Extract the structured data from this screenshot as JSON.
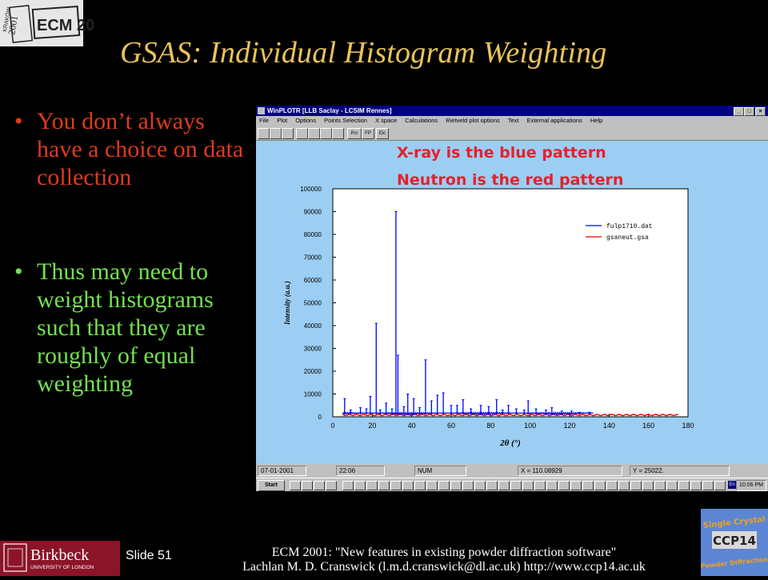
{
  "logo": {
    "text_krakow": "KRAKÓW",
    "year": "2001",
    "brand": "ECM 20"
  },
  "title": "GSAS: Individual Histogram  Weighting",
  "bullets": [
    {
      "text": "You don’t always have a choice on data collection",
      "color": "#e0391e"
    },
    {
      "text": "Thus may need to weight histograms such that they are roughly of equal weighting",
      "color": "#73e04f"
    }
  ],
  "window": {
    "title": "WinPLOTR [LLB Saclay - LCSIM Rennes]",
    "menu": [
      "File",
      "Plot",
      "Options",
      "Points Selection",
      "X space",
      "Calculations",
      "Rietveld plot options",
      "Text",
      "External applications",
      "Help"
    ],
    "toolbar_labels": [
      "Pcr",
      "FP",
      "Eic"
    ],
    "annotation1": "X-ray is the blue pattern",
    "annotation2": "Neutron is the red pattern",
    "status": {
      "date": "07-01-2001",
      "time": "22:06",
      "mode": "NUM",
      "x": "X =    110.08929",
      "y": "Y =    25022."
    },
    "taskbar": {
      "start": "Start",
      "clock": "10:06 PM",
      "lang": "En"
    }
  },
  "chart_data": {
    "type": "line",
    "xlabel": "2θ (°)",
    "ylabel": "Intensity (a.u.)",
    "xlim": [
      0,
      180
    ],
    "ylim": [
      0,
      100000
    ],
    "xticks": [
      0,
      20,
      40,
      60,
      80,
      100,
      120,
      140,
      160,
      180
    ],
    "yticks": [
      0,
      10000,
      20000,
      30000,
      40000,
      50000,
      60000,
      70000,
      80000,
      90000,
      100000
    ],
    "legend_position": "top-right",
    "series": [
      {
        "name": "fulp1710.dat",
        "color": "#0000ff",
        "peaks": [
          [
            6,
            8000
          ],
          [
            9,
            3000
          ],
          [
            14,
            4000
          ],
          [
            17,
            3500
          ],
          [
            19,
            9000
          ],
          [
            22,
            41000
          ],
          [
            24,
            3000
          ],
          [
            27,
            6000
          ],
          [
            30,
            3500
          ],
          [
            32,
            90000
          ],
          [
            33,
            27000
          ],
          [
            36,
            4500
          ],
          [
            38,
            10000
          ],
          [
            41,
            8000
          ],
          [
            44,
            4000
          ],
          [
            47,
            25000
          ],
          [
            50,
            7000
          ],
          [
            53,
            9500
          ],
          [
            56,
            10500
          ],
          [
            60,
            5000
          ],
          [
            63,
            5000
          ],
          [
            66,
            7500
          ],
          [
            70,
            3500
          ],
          [
            75,
            5000
          ],
          [
            79,
            4500
          ],
          [
            83,
            7500
          ],
          [
            86,
            3000
          ],
          [
            89,
            5000
          ],
          [
            93,
            3500
          ],
          [
            97,
            3000
          ],
          [
            99,
            7000
          ],
          [
            103,
            3500
          ],
          [
            108,
            3000
          ],
          [
            111,
            4000
          ],
          [
            116,
            2500
          ],
          [
            121,
            2500
          ],
          [
            125,
            2000
          ],
          [
            130,
            2000
          ]
        ],
        "baseline": 1000
      },
      {
        "name": "gsaneut.gsa",
        "color": "#e00000",
        "baseline": 500
      }
    ]
  },
  "footer": {
    "slide": "Slide 51",
    "line1": "ECM 2001: \"New features in existing powder diffraction software\"",
    "line2": "Lachlan M. D. Cranswick (l.m.d.cranswick@dl.ac.uk) http://www.ccp14.ac.uk"
  },
  "birkbeck": {
    "name": "Birkbeck",
    "sub": "UNIVERSITY OF LONDON"
  },
  "ccp14_logo": {
    "line1": "Single Crystal",
    "line2": "CCP14",
    "line3": "Powder Diffraction"
  }
}
